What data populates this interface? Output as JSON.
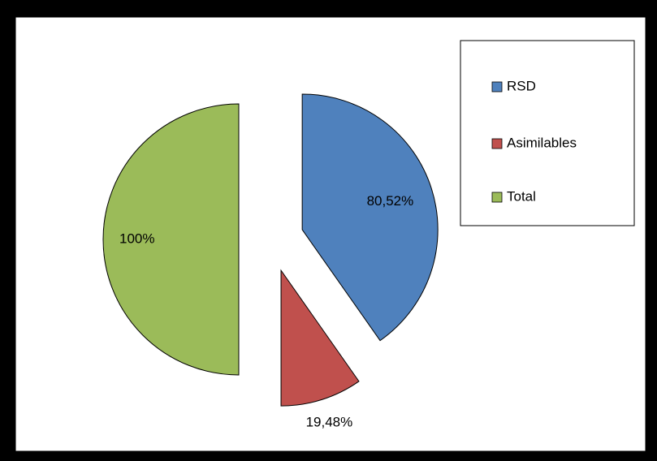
{
  "chart_data": {
    "type": "pie",
    "categories": [
      "RSD",
      "Asimilables",
      "Total"
    ],
    "values": [
      80.52,
      19.48,
      100
    ],
    "value_labels": [
      "80,52%",
      "19,48%",
      "100%"
    ],
    "colors": [
      "#4f81bd",
      "#c0504d",
      "#9bbb59"
    ],
    "legend": "right"
  }
}
